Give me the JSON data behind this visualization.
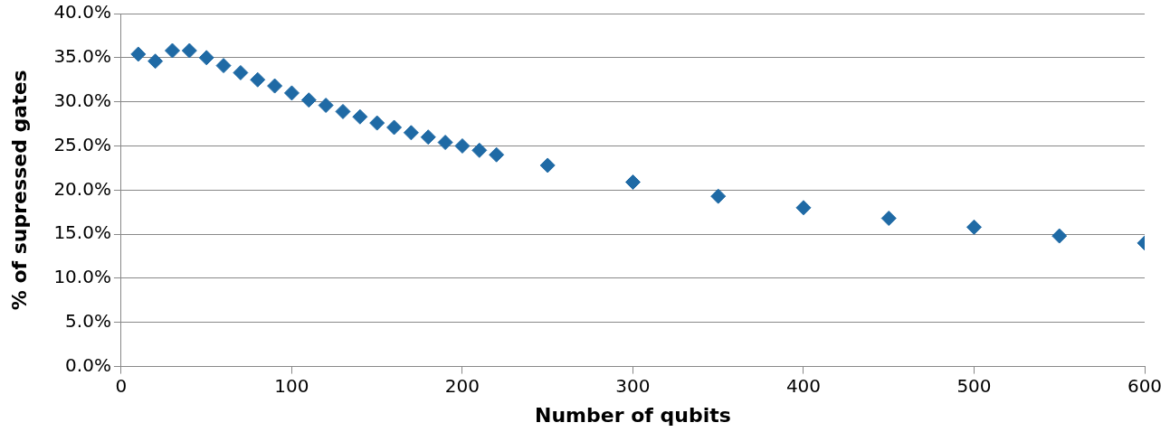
{
  "chart_data": {
    "type": "scatter",
    "xlabel": "Number of qubits",
    "ylabel": "% of supressed gates",
    "x": [
      10,
      20,
      30,
      40,
      50,
      60,
      70,
      80,
      90,
      100,
      110,
      120,
      130,
      140,
      150,
      160,
      170,
      180,
      190,
      200,
      210,
      220,
      250,
      300,
      350,
      400,
      450,
      500,
      550,
      600
    ],
    "series": [
      {
        "color": "#1f6aa5",
        "values": [
          35.4,
          34.6,
          35.8,
          35.8,
          35.0,
          34.1,
          33.3,
          32.5,
          31.8,
          31.0,
          30.2,
          29.6,
          28.9,
          28.3,
          27.6,
          27.1,
          26.5,
          26.0,
          25.4,
          25.0,
          24.5,
          24.0,
          22.8,
          20.9,
          19.3,
          18.0,
          16.8,
          15.8,
          14.8,
          14.0
        ]
      }
    ],
    "xlim": [
      0,
      600
    ],
    "xticks": [
      0,
      100,
      200,
      300,
      400,
      500,
      600
    ],
    "ylim": [
      0,
      40
    ],
    "yticks": [
      {
        "value": 0,
        "label": "0.0%"
      },
      {
        "value": 5,
        "label": "5.0%"
      },
      {
        "value": 10,
        "label": "10.0%"
      },
      {
        "value": 15,
        "label": "15.0%"
      },
      {
        "value": 20,
        "label": "20.0%"
      },
      {
        "value": 25,
        "label": "25.0%"
      },
      {
        "value": 30,
        "label": "30.0%"
      },
      {
        "value": 35,
        "label": "35.0%"
      },
      {
        "value": 40,
        "label": "40.0%"
      }
    ],
    "grid": "y",
    "marker": "diamond",
    "legend": false
  }
}
